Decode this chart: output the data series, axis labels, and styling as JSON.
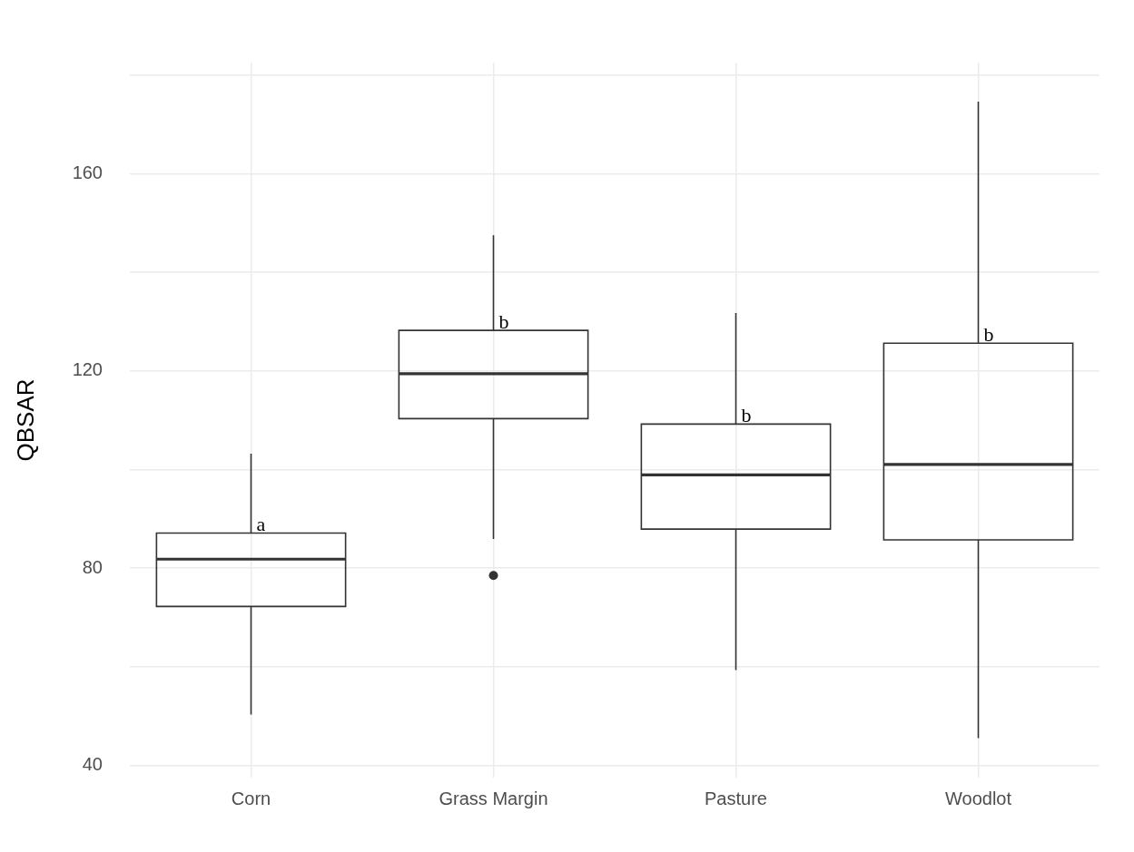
{
  "chart_data": {
    "type": "box",
    "ylabel": "QBSAR",
    "categories": [
      "Corn",
      "Grass Margin",
      "Pasture",
      "Woodlot"
    ],
    "color": "#333333",
    "boxes": [
      {
        "low": 50.3,
        "q1": 72.2,
        "median": 81.8,
        "q3": 87.1,
        "high": 103.2
      },
      {
        "low": 85.9,
        "q1": 110.3,
        "median": 119.4,
        "q3": 128.2,
        "high": 147.5,
        "outliers": [
          78.5
        ]
      },
      {
        "low": 59.3,
        "q1": 87.9,
        "median": 98.9,
        "q3": 109.2,
        "high": 131.7
      },
      {
        "low": 45.5,
        "q1": 85.7,
        "median": 101,
        "q3": 125.6,
        "high": 174.6
      }
    ],
    "ylim": [
      37.5,
      182.5
    ],
    "yticks": [
      40,
      {
        "value": 60,
        "label": null
      },
      80,
      {
        "value": 100,
        "label": null
      },
      120,
      {
        "value": 140,
        "label": null
      },
      160,
      {
        "value": 180,
        "label": null
      }
    ],
    "grid": true,
    "annotations": [
      {
        "text": "a",
        "x": "Corn",
        "y": 87.1
      },
      {
        "text": "b",
        "x": "Grass Margin",
        "y": 128.2
      },
      {
        "text": "b",
        "x": "Pasture",
        "y": 109.2
      },
      {
        "text": "b",
        "x": "Woodlot",
        "y": 125.6
      }
    ]
  }
}
